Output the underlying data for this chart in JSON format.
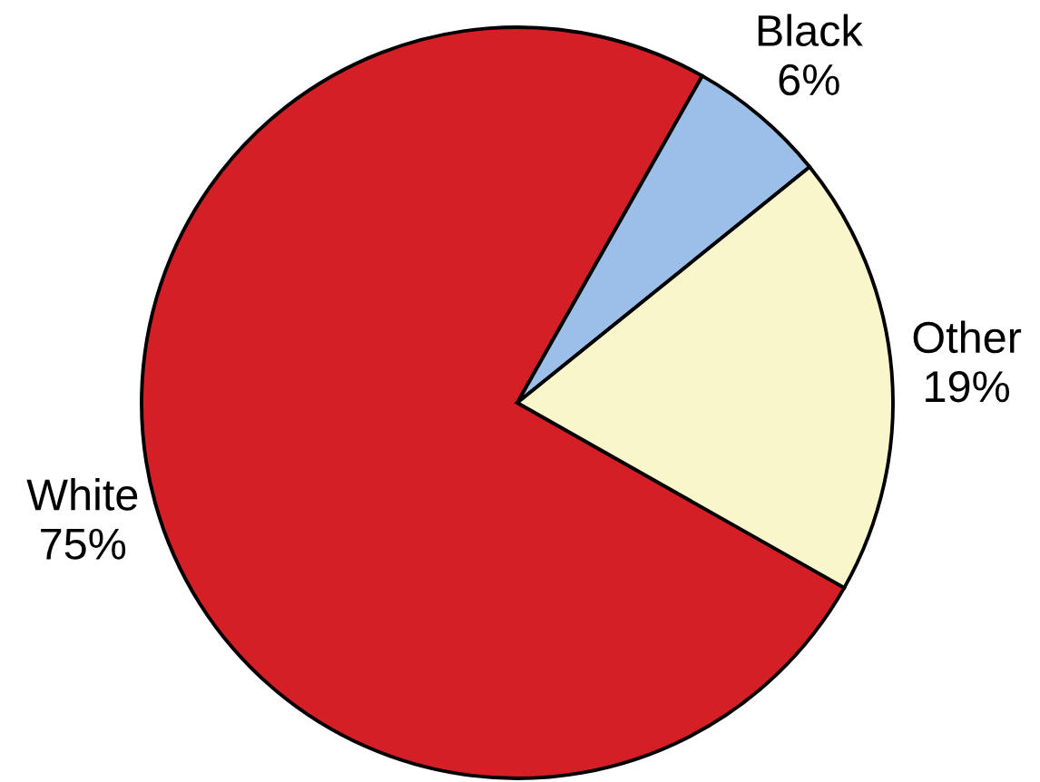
{
  "chart_data": {
    "type": "pie",
    "categories": [
      "White",
      "Black",
      "Other"
    ],
    "values": [
      75,
      6,
      19
    ],
    "colors": [
      "#d41f26",
      "#9bbfe8",
      "#faf6cc"
    ],
    "value_labels": [
      "75%",
      "6%",
      "19%"
    ]
  }
}
